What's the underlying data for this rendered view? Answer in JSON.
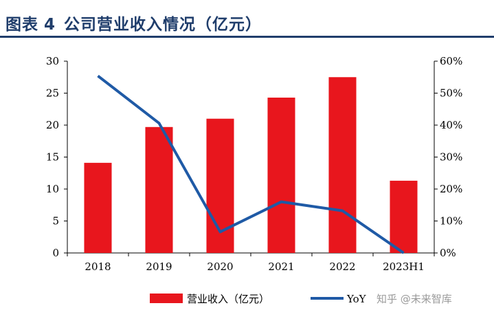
{
  "header": {
    "label": "图表",
    "number": "4",
    "title": "公司营业收入情况（亿元）"
  },
  "colors": {
    "bar": "#e8161d",
    "line": "#1f5aa6",
    "header": "#1f3d6b"
  },
  "watermark": "知乎 @未来智库",
  "chart_data": {
    "type": "bar",
    "categories": [
      "2018",
      "2019",
      "2020",
      "2021",
      "2022",
      "2023H1"
    ],
    "series": [
      {
        "name": "营业收入（亿元）",
        "type": "bar",
        "axis": "left",
        "values": [
          14.1,
          19.7,
          21.0,
          24.3,
          27.5,
          11.3
        ]
      },
      {
        "name": "YoY",
        "type": "line",
        "axis": "right",
        "values": [
          0.554,
          0.406,
          0.066,
          0.16,
          0.132,
          0.0
        ]
      }
    ],
    "ylim": [
      0,
      30
    ],
    "yticks": [
      "0",
      "5",
      "10",
      "15",
      "20",
      "25",
      "30"
    ],
    "y2lim": [
      0,
      0.6
    ],
    "y2ticks": [
      "0%",
      "10%",
      "20%",
      "30%",
      "40%",
      "50%",
      "60%"
    ],
    "legend": "bottom"
  }
}
